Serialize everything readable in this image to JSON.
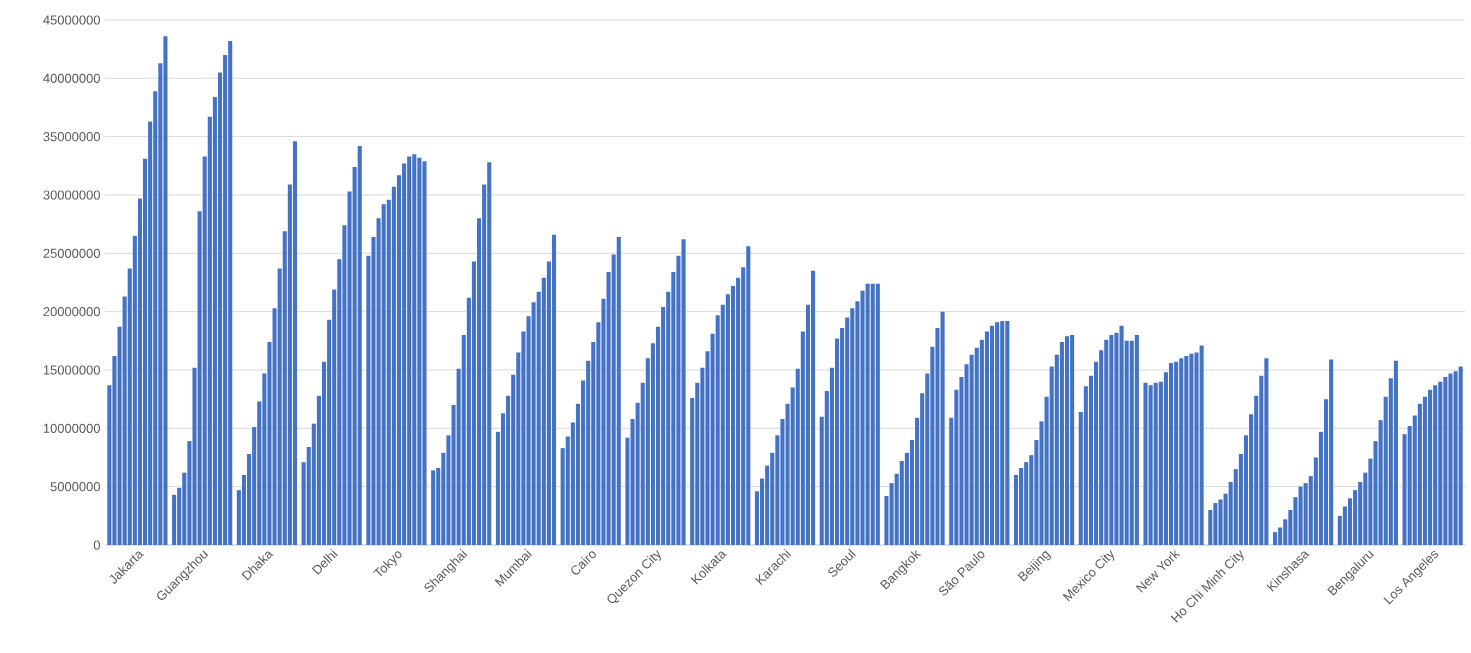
{
  "chart_data": {
    "type": "bar",
    "categories": [
      "Jakarta",
      "Guangzhou",
      "Dhaka",
      "Delhi",
      "Tokyo",
      "Shanghai",
      "Mumbai",
      "Cairo",
      "Quezon City",
      "Kolkata",
      "Karachi",
      "Seoul",
      "Bangkok",
      "São Paulo",
      "Beijing",
      "Mexico City",
      "New York",
      "Ho Chi Minh City",
      "Kinshasa",
      "Bengaluru",
      "Los Angeles"
    ],
    "series": [
      {
        "color": "#4472c4",
        "values": [
          13700000,
          4300000,
          4700000,
          7100000,
          24800000,
          6400000,
          9700000,
          8300000,
          9200000,
          12600000,
          4600000,
          11000000,
          4200000,
          10900000,
          6000000,
          11400000,
          13900000,
          3000000,
          1100000,
          2500000,
          9500000
        ]
      },
      {
        "color": "#4472c4",
        "values": [
          16200000,
          4900000,
          6000000,
          8400000,
          26400000,
          6600000,
          11300000,
          9300000,
          10800000,
          13900000,
          5700000,
          13200000,
          5300000,
          13300000,
          6600000,
          13600000,
          13700000,
          3600000,
          1500000,
          3300000,
          10200000
        ]
      },
      {
        "color": "#4472c4",
        "values": [
          18700000,
          6200000,
          7800000,
          10400000,
          28000000,
          7900000,
          12800000,
          10500000,
          12200000,
          15200000,
          6800000,
          15200000,
          6100000,
          14400000,
          7100000,
          14500000,
          13900000,
          3900000,
          2200000,
          4000000,
          11100000
        ]
      },
      {
        "color": "#4472c4",
        "values": [
          21300000,
          8900000,
          10100000,
          12800000,
          29200000,
          9400000,
          14600000,
          12100000,
          13900000,
          16600000,
          7900000,
          17700000,
          7200000,
          15500000,
          7700000,
          15700000,
          14000000,
          4400000,
          3000000,
          4700000,
          12100000
        ]
      },
      {
        "color": "#4472c4",
        "values": [
          23700000,
          15200000,
          12300000,
          15700000,
          29600000,
          12000000,
          16500000,
          14100000,
          16000000,
          18100000,
          9400000,
          18600000,
          7900000,
          16300000,
          9000000,
          16700000,
          14800000,
          5400000,
          4100000,
          5400000,
          12700000
        ]
      },
      {
        "color": "#4472c4",
        "values": [
          26500000,
          28600000,
          14700000,
          19300000,
          30700000,
          15100000,
          18300000,
          15800000,
          17300000,
          19700000,
          10800000,
          19500000,
          9000000,
          16900000,
          10600000,
          17600000,
          15600000,
          6500000,
          5000000,
          6200000,
          13300000
        ]
      },
      {
        "color": "#4472c4",
        "values": [
          29700000,
          33300000,
          17400000,
          21900000,
          31700000,
          18000000,
          19600000,
          17400000,
          18700000,
          20600000,
          12100000,
          20300000,
          10900000,
          17600000,
          12700000,
          18000000,
          15700000,
          7800000,
          5300000,
          7400000,
          13700000
        ]
      },
      {
        "color": "#4472c4",
        "values": [
          33100000,
          36700000,
          20300000,
          24500000,
          32700000,
          21200000,
          20800000,
          19100000,
          20400000,
          21500000,
          13500000,
          20900000,
          13000000,
          18300000,
          15300000,
          18200000,
          16000000,
          9400000,
          5900000,
          8900000,
          14000000
        ]
      },
      {
        "color": "#4472c4",
        "values": [
          36300000,
          38400000,
          23700000,
          27400000,
          33300000,
          24300000,
          21700000,
          21100000,
          21700000,
          22200000,
          15100000,
          21800000,
          14700000,
          18800000,
          16300000,
          18800000,
          16200000,
          11200000,
          7500000,
          10700000,
          14400000
        ]
      },
      {
        "color": "#4472c4",
        "values": [
          38900000,
          40500000,
          26900000,
          30300000,
          33500000,
          28000000,
          22900000,
          23400000,
          23400000,
          22900000,
          18300000,
          22400000,
          17000000,
          19100000,
          17400000,
          17500000,
          16400000,
          12800000,
          9700000,
          12700000,
          14700000
        ]
      },
      {
        "color": "#4472c4",
        "values": [
          41300000,
          42000000,
          30900000,
          32400000,
          33200000,
          30900000,
          24300000,
          24900000,
          24800000,
          23800000,
          20600000,
          22400000,
          18600000,
          19200000,
          17900000,
          17500000,
          16500000,
          14500000,
          12500000,
          14300000,
          14900000
        ]
      },
      {
        "color": "#4472c4",
        "values": [
          43600000,
          43200000,
          34600000,
          34200000,
          32900000,
          32800000,
          26600000,
          26400000,
          26200000,
          25600000,
          23500000,
          22400000,
          20000000,
          19200000,
          18000000,
          18000000,
          17100000,
          16000000,
          15900000,
          15800000,
          15300000
        ]
      }
    ],
    "ylim": [
      0,
      45000000
    ],
    "yticks": [
      0,
      5000000,
      10000000,
      15000000,
      20000000,
      25000000,
      30000000,
      35000000,
      40000000,
      45000000
    ],
    "grid": "y"
  }
}
